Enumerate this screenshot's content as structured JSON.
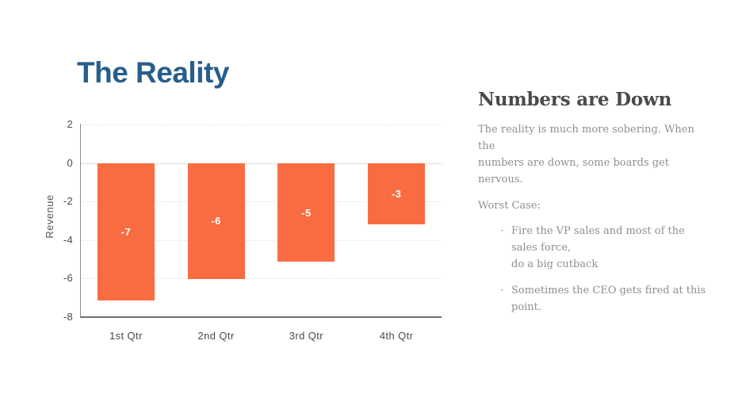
{
  "slide": {
    "title": "The Reality"
  },
  "chart_data": {
    "type": "bar",
    "title": "",
    "categories": [
      "1st Qtr",
      "2nd Qtr",
      "3rd Qtr",
      "4th Qtr"
    ],
    "values": [
      -7,
      -6,
      -5,
      -3
    ],
    "bar_labels": [
      "-7",
      "-6",
      "-5",
      "-3"
    ],
    "plotted_values": [
      -7.1,
      -6.0,
      -5.1,
      -3.15
    ],
    "xlabel": "",
    "ylabel": "Revenue",
    "ylim": [
      -8,
      2
    ],
    "yticks": [
      2,
      0,
      -2,
      -4,
      -6,
      -8
    ],
    "grid": "horizontal dotted gridlines at each tick, zero line emphasized",
    "legend": false,
    "bar_color": "#F96C42",
    "bar_label_color": "#FFFFFF",
    "axis_color": "#8E8E8E",
    "tick_label_color": "#4A4A4A"
  },
  "sidebar": {
    "heading": "Numbers are Down",
    "paragraph_lines": [
      "The reality is much more sobering. When the",
      "numbers are down, some boards get nervous."
    ],
    "worst_case_label": "Worst Case:",
    "bullet_char": "·",
    "bullets": [
      {
        "lines": [
          "Fire the VP sales and most of the sales force,",
          "do a big cutback"
        ]
      },
      {
        "lines": [
          "Sometimes the CEO gets fired at this point."
        ]
      }
    ]
  },
  "colors": {
    "title_blue": "#275E8C",
    "accent_orange": "#F96C42",
    "heading_gray": "#4A4A4A",
    "body_gray": "#8F8F8F"
  }
}
